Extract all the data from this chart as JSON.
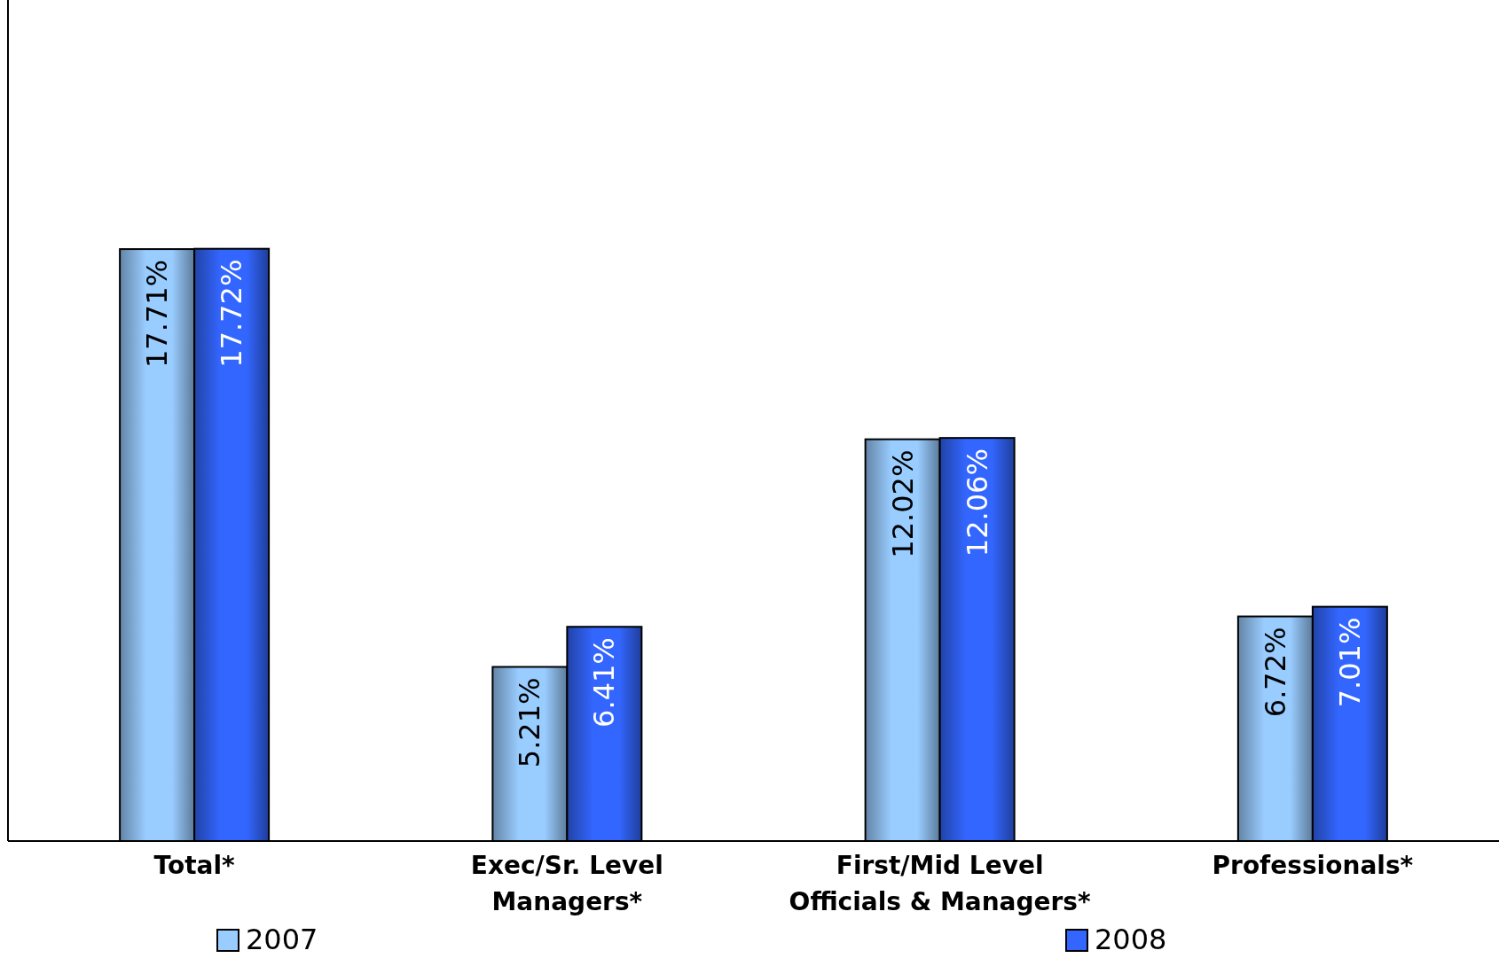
{
  "chart_data": {
    "type": "bar",
    "categories": [
      "Total*",
      "Exec/Sr. Level Managers*",
      "First/Mid Level Officials & Managers*",
      "Professionals*"
    ],
    "series": [
      {
        "name": "2007",
        "color": "#99ccff",
        "values": [
          17.71,
          5.21,
          12.02,
          6.72
        ],
        "value_labels": [
          "17.71%",
          "5.21%",
          "12.02%",
          "6.72%"
        ]
      },
      {
        "name": "2008",
        "color": "#3366ff",
        "values": [
          17.72,
          6.41,
          12.06,
          7.01
        ],
        "value_labels": [
          "17.72%",
          "6.41%",
          "12.06%",
          "7.01%"
        ]
      }
    ],
    "legend": "bottom",
    "grid": false
  }
}
